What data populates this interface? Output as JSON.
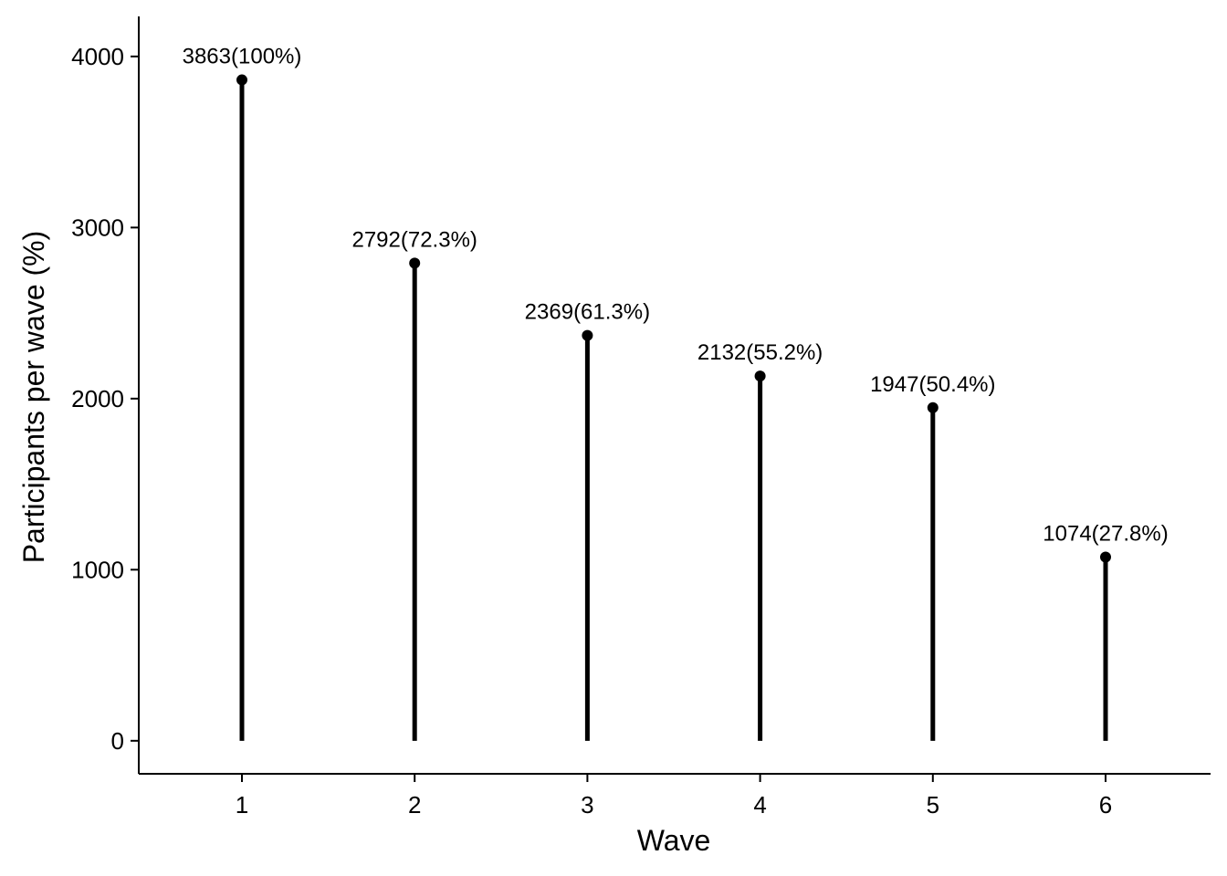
{
  "chart_data": {
    "type": "lollipop",
    "xlabel": "Wave",
    "ylabel": "Participants per wave (%)",
    "categories": [
      "1",
      "2",
      "3",
      "4",
      "5",
      "6"
    ],
    "values": [
      3863,
      2792,
      2369,
      2132,
      1947,
      1074
    ],
    "data_labels": [
      "3863(100%)",
      "2792(72.3%)",
      "2369(61.3%)",
      "2132(55.2%)",
      "1947(50.4%)",
      "1074(27.8%)"
    ],
    "yticks": [
      0,
      1000,
      2000,
      3000,
      4000
    ],
    "ylim": [
      -193,
      4234
    ],
    "grid": false,
    "legend": "none",
    "color": "#000000"
  }
}
